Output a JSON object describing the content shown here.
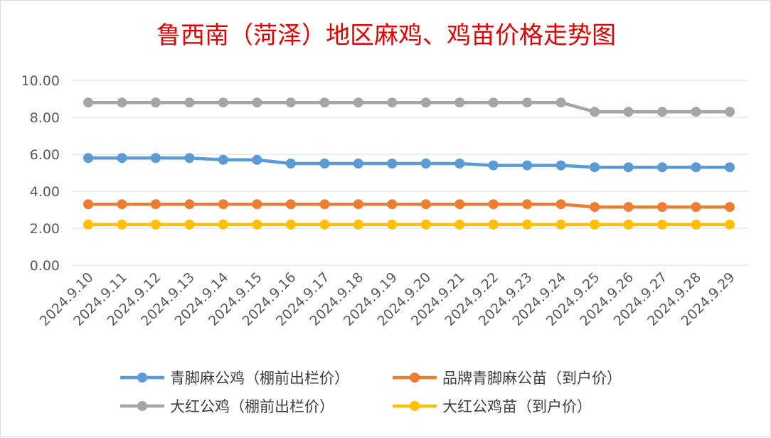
{
  "chart_data": {
    "type": "line",
    "title": "鲁西南（菏泽）地区麻鸡、鸡苗价格走势图",
    "xlabel": "",
    "ylabel": "",
    "ylim": [
      0,
      10
    ],
    "y_ticks": [
      "0.00",
      "2.00",
      "4.00",
      "6.00",
      "8.00",
      "10.00"
    ],
    "grid": true,
    "legend_position": "bottom",
    "categories": [
      "2024.9.10",
      "2024.9.11",
      "2024.9.12",
      "2024.9.13",
      "2024.9.14",
      "2024.9.15",
      "2024.9.16",
      "2024.9.17",
      "2024.9.18",
      "2024.9.19",
      "2024.9.20",
      "2024.9.21",
      "2024.9.22",
      "2024.9.23",
      "2024.9.24",
      "2024.9.25",
      "2024.9.26",
      "2024.9.27",
      "2024.9.28",
      "2024.9.29"
    ],
    "series": [
      {
        "name": "青脚麻公鸡（棚前出栏价）",
        "color": "#5b9bd5",
        "values": [
          5.8,
          5.8,
          5.8,
          5.8,
          5.7,
          5.7,
          5.5,
          5.5,
          5.5,
          5.5,
          5.5,
          5.5,
          5.4,
          5.4,
          5.4,
          5.3,
          5.3,
          5.3,
          5.3,
          5.3
        ]
      },
      {
        "name": "品牌青脚麻公苗（到户价）",
        "color": "#ed7d31",
        "values": [
          3.3,
          3.3,
          3.3,
          3.3,
          3.3,
          3.3,
          3.3,
          3.3,
          3.3,
          3.3,
          3.3,
          3.3,
          3.3,
          3.3,
          3.3,
          3.15,
          3.15,
          3.15,
          3.15,
          3.15
        ]
      },
      {
        "name": "大红公鸡（棚前出栏价）",
        "color": "#a5a5a5",
        "values": [
          8.8,
          8.8,
          8.8,
          8.8,
          8.8,
          8.8,
          8.8,
          8.8,
          8.8,
          8.8,
          8.8,
          8.8,
          8.8,
          8.8,
          8.8,
          8.3,
          8.3,
          8.3,
          8.3,
          8.3
        ]
      },
      {
        "name": "大红公鸡苗（到户价）",
        "color": "#ffc000",
        "values": [
          2.2,
          2.2,
          2.2,
          2.2,
          2.2,
          2.2,
          2.2,
          2.2,
          2.2,
          2.2,
          2.2,
          2.2,
          2.2,
          2.2,
          2.2,
          2.2,
          2.2,
          2.2,
          2.2,
          2.2
        ]
      }
    ]
  }
}
